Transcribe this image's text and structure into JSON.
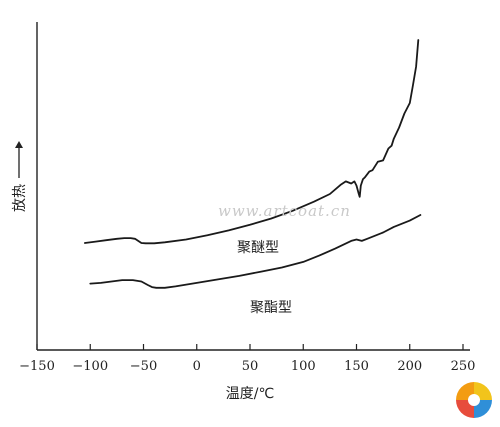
{
  "chart_data": {
    "type": "line",
    "title": "",
    "xlabel": "温度/℃",
    "ylabel": "放热",
    "xlim": [
      -150,
      250
    ],
    "xticks": [
      -150,
      -100,
      -50,
      0,
      50,
      100,
      150,
      200,
      250
    ],
    "y_ticks_shown": false,
    "grid": false,
    "series": [
      {
        "name": "聚醚型",
        "x": [
          -105,
          -95,
          -85,
          -75,
          -68,
          -62,
          -58,
          -55,
          -52,
          -48,
          -40,
          -30,
          -10,
          10,
          30,
          50,
          70,
          90,
          110,
          125,
          135,
          140,
          145,
          148,
          150,
          152,
          153,
          154,
          156,
          158,
          162,
          165,
          170,
          175,
          180,
          183,
          185,
          190,
          195,
          200,
          203,
          206,
          208
        ],
        "y": [
          1.0,
          1.2,
          1.4,
          1.6,
          1.7,
          1.7,
          1.6,
          1.3,
          1.0,
          0.95,
          0.95,
          1.1,
          1.5,
          2.1,
          2.8,
          3.6,
          4.5,
          5.6,
          6.9,
          8.0,
          9.3,
          9.8,
          9.5,
          9.8,
          9.2,
          8.1,
          7.6,
          9.2,
          10.1,
          10.4,
          11.2,
          11.4,
          12.6,
          12.8,
          14.5,
          14.9,
          15.9,
          17.5,
          19.5,
          21.0,
          23.5,
          26.2,
          30.0
        ]
      },
      {
        "name": "聚酯型",
        "x": [
          -100,
          -90,
          -80,
          -70,
          -60,
          -52,
          -46,
          -42,
          -38,
          -30,
          -20,
          0,
          20,
          40,
          60,
          80,
          100,
          115,
          130,
          145,
          150,
          155,
          160,
          175,
          185,
          200,
          210
        ],
        "y": [
          -4.8,
          -4.7,
          -4.5,
          -4.3,
          -4.3,
          -4.5,
          -5.0,
          -5.3,
          -5.4,
          -5.4,
          -5.2,
          -4.7,
          -4.2,
          -3.7,
          -3.1,
          -2.5,
          -1.7,
          -0.8,
          0.2,
          1.3,
          1.5,
          1.3,
          1.6,
          2.5,
          3.3,
          4.2,
          5.0
        ]
      }
    ]
  },
  "watermark": "www.artcoat.cn"
}
